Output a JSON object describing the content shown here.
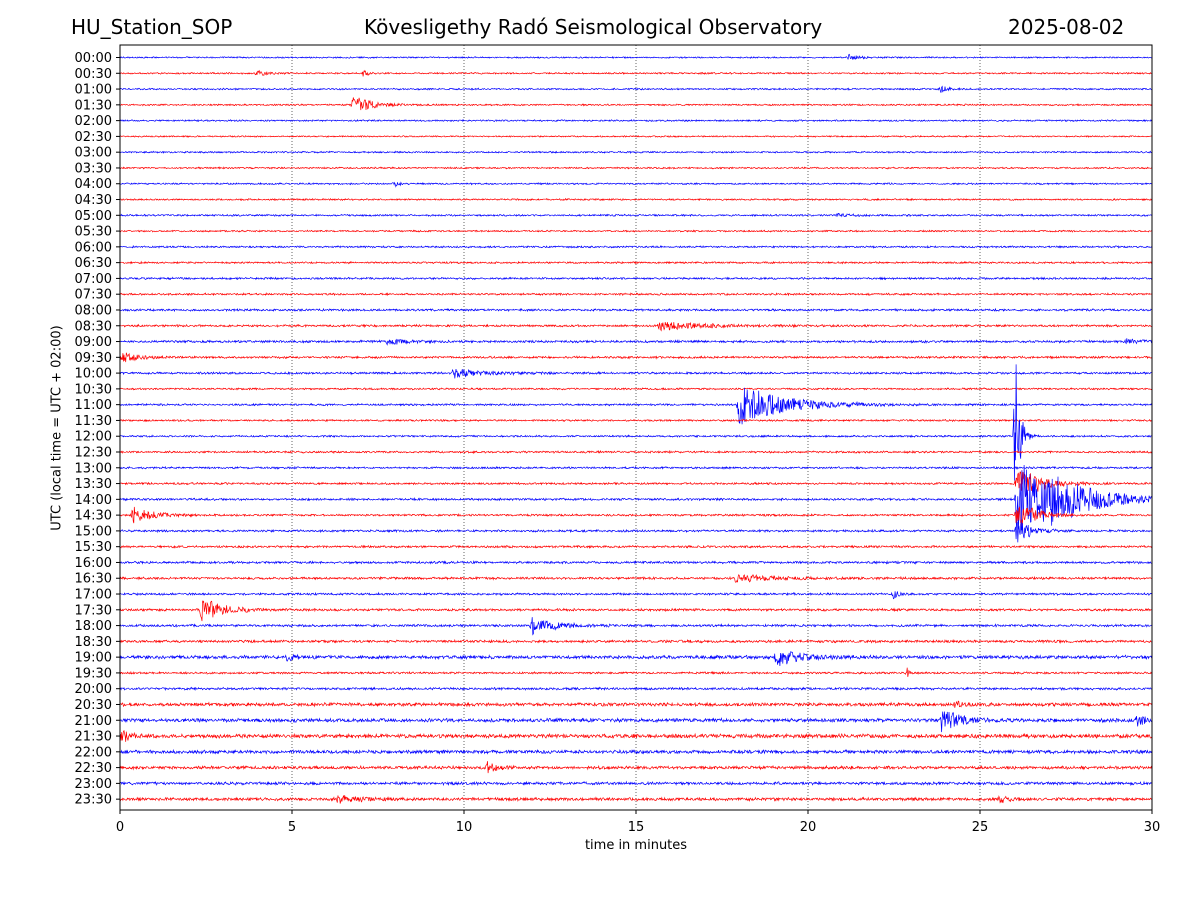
{
  "header": {
    "station": "HU_Station_SOP",
    "title": "Kövesligethy Radó Seismological Observatory",
    "date": "2025-08-02"
  },
  "chart_data": {
    "type": "line",
    "title": "Kövesligethy Radó Seismological Observatory",
    "xlabel": "time in minutes",
    "ylabel": "UTC (local time = UTC + 02:00)",
    "xlim": [
      0,
      30
    ],
    "xticks": [
      "0",
      "5",
      "10",
      "15",
      "20",
      "25",
      "30"
    ],
    "grid": "vertical dotted",
    "colors": [
      "#0000ff",
      "#ff0000"
    ],
    "rows": [
      "00:00",
      "00:30",
      "01:00",
      "01:30",
      "02:00",
      "02:30",
      "03:00",
      "03:30",
      "04:00",
      "04:30",
      "05:00",
      "05:30",
      "06:00",
      "06:30",
      "07:00",
      "07:30",
      "08:00",
      "08:30",
      "09:00",
      "09:30",
      "10:00",
      "10:30",
      "11:00",
      "11:30",
      "12:00",
      "12:30",
      "13:00",
      "13:30",
      "14:00",
      "14:30",
      "15:00",
      "15:30",
      "16:00",
      "16:30",
      "17:00",
      "17:30",
      "18:00",
      "18:30",
      "19:00",
      "19:30",
      "20:00",
      "20:30",
      "21:00",
      "21:30",
      "22:00",
      "22:30",
      "23:00",
      "23:30"
    ],
    "noise": [
      0.8,
      0.9,
      0.9,
      0.9,
      0.9,
      0.8,
      0.9,
      0.9,
      0.9,
      0.9,
      1.0,
      0.9,
      1.0,
      1.0,
      1.1,
      1.1,
      1.2,
      1.2,
      1.3,
      1.2,
      1.2,
      1.0,
      1.1,
      1.0,
      1.0,
      1.1,
      1.1,
      1.1,
      1.2,
      1.1,
      1.2,
      1.2,
      1.3,
      1.3,
      1.2,
      1.3,
      1.3,
      1.4,
      1.9,
      1.1,
      1.3,
      1.9,
      2.0,
      2.2,
      1.9,
      1.7,
      1.6,
      1.7
    ],
    "events": [
      {
        "row": "00:00",
        "start": 21.1,
        "amp": 3,
        "dur": 0.7
      },
      {
        "row": "00:30",
        "start": 3.9,
        "amp": 2.5,
        "dur": 0.8
      },
      {
        "row": "00:30",
        "start": 7.0,
        "amp": 3,
        "dur": 0.3
      },
      {
        "row": "01:00",
        "start": 23.8,
        "amp": 4,
        "dur": 0.4
      },
      {
        "row": "01:30",
        "start": 6.7,
        "amp": 10,
        "dur": 1.2
      },
      {
        "row": "04:00",
        "start": 7.9,
        "amp": 3,
        "dur": 0.3
      },
      {
        "row": "05:00",
        "start": 20.8,
        "amp": 2,
        "dur": 1.0
      },
      {
        "row": "08:30",
        "start": 15.6,
        "amp": 4,
        "dur": 3.0
      },
      {
        "row": "09:00",
        "start": 7.7,
        "amp": 3,
        "dur": 1.2
      },
      {
        "row": "09:00",
        "start": 29.2,
        "amp": 3,
        "dur": 0.8
      },
      {
        "row": "09:30",
        "start": 0.0,
        "amp": 5,
        "dur": 1.0
      },
      {
        "row": "10:00",
        "start": 9.6,
        "amp": 5,
        "dur": 1.8
      },
      {
        "row": "11:00",
        "start": 17.9,
        "amp": 22,
        "dur": 3.0
      },
      {
        "row": "12:00",
        "start": 25.95,
        "amp": 90,
        "dur": 0.3
      },
      {
        "row": "13:30",
        "start": 26.0,
        "amp": 20,
        "dur": 1.5
      },
      {
        "row": "14:00",
        "start": 26.0,
        "amp": 40,
        "dur": 3.2
      },
      {
        "row": "14:00",
        "start": 27.0,
        "amp": 9,
        "dur": 3.0
      },
      {
        "row": "14:30",
        "start": 0.3,
        "amp": 8,
        "dur": 1.4
      },
      {
        "row": "14:30",
        "start": 26.0,
        "amp": 15,
        "dur": 1.2
      },
      {
        "row": "15:00",
        "start": 26.0,
        "amp": 12,
        "dur": 1.0
      },
      {
        "row": "16:30",
        "start": 17.8,
        "amp": 4,
        "dur": 2.5
      },
      {
        "row": "17:00",
        "start": 22.4,
        "amp": 4,
        "dur": 0.5
      },
      {
        "row": "17:30",
        "start": 2.3,
        "amp": 12,
        "dur": 1.5
      },
      {
        "row": "18:00",
        "start": 11.9,
        "amp": 9,
        "dur": 1.5
      },
      {
        "row": "19:00",
        "start": 19.0,
        "amp": 9,
        "dur": 1.6
      },
      {
        "row": "19:00",
        "start": 4.8,
        "amp": 4,
        "dur": 0.5
      },
      {
        "row": "19:30",
        "start": 22.8,
        "amp": 5,
        "dur": 0.2
      },
      {
        "row": "20:30",
        "start": 24.2,
        "amp": 3,
        "dur": 0.5
      },
      {
        "row": "21:00",
        "start": 23.8,
        "amp": 12,
        "dur": 1.2
      },
      {
        "row": "21:00",
        "start": 29.5,
        "amp": 6,
        "dur": 0.5
      },
      {
        "row": "21:30",
        "start": 0.0,
        "amp": 7,
        "dur": 0.4
      },
      {
        "row": "22:30",
        "start": 10.6,
        "amp": 5,
        "dur": 0.6
      },
      {
        "row": "23:30",
        "start": 6.2,
        "amp": 4,
        "dur": 1.3
      },
      {
        "row": "23:30",
        "start": 25.5,
        "amp": 3,
        "dur": 0.8
      }
    ]
  }
}
